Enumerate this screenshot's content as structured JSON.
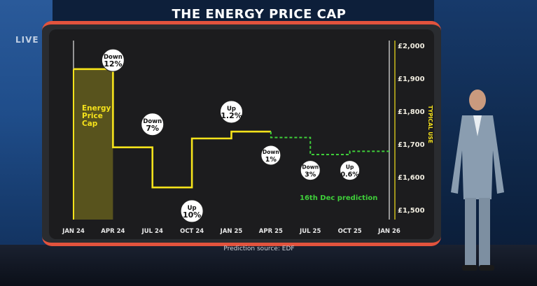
{
  "header": {
    "live_label": "LIVE",
    "title": "THE ENERGY PRICE CAP"
  },
  "footer": {
    "source": "Prediction source: EDF"
  },
  "colors": {
    "cap_line": "#f5e21b",
    "prediction_line": "#3fcf3a",
    "panel": "#1c1c1e",
    "accent": "#e2533d"
  },
  "chart_data": {
    "type": "line",
    "title": "THE ENERGY PRICE CAP",
    "ylabel": "TYPICAL USE",
    "xlabel": "",
    "x_ticks": [
      "JAN 24",
      "APR 24",
      "JUL 24",
      "OCT 24",
      "JAN 25",
      "APR 25",
      "JUL 25",
      "OCT 25",
      "JAN 26"
    ],
    "y_ticks": [
      "£1,500",
      "£1,600",
      "£1,700",
      "£1,800",
      "£1,900",
      "£2,000"
    ],
    "ylim": [
      1500,
      2000
    ],
    "grid": false,
    "series": [
      {
        "name": "Energy Price Cap",
        "style": "solid",
        "color": "#f5e21b",
        "points": [
          {
            "x": "JAN 24",
            "y": 1928
          },
          {
            "x": "APR 24",
            "y": 1690
          },
          {
            "x": "JUL 24",
            "y": 1568
          },
          {
            "x": "OCT 24",
            "y": 1717
          },
          {
            "x": "JAN 25",
            "y": 1738
          },
          {
            "x": "APR 25",
            "y": 1738
          }
        ],
        "end": "APR 25"
      },
      {
        "name": "16th Dec prediction",
        "style": "dashed",
        "color": "#3fcf3a",
        "points": [
          {
            "x": "APR 25",
            "y": 1738
          },
          {
            "x": "APR 25",
            "y": 1720
          },
          {
            "x": "JUL 25",
            "y": 1668
          },
          {
            "x": "OCT 25",
            "y": 1678
          }
        ],
        "end": "JAN 26"
      }
    ],
    "annotations": [
      {
        "line1": "Down",
        "line2": "12%",
        "x": "APR 24",
        "y": 1955,
        "size": "large"
      },
      {
        "line1": "Down",
        "line2": "7%",
        "x": "JUL 24",
        "y": 1760,
        "size": "large"
      },
      {
        "line1": "Up",
        "line2": "10%",
        "x": "OCT 24",
        "y": 1496,
        "size": "large"
      },
      {
        "line1": "Up",
        "line2": "1.2%",
        "x": "JAN 25",
        "y": 1798,
        "size": "large"
      },
      {
        "line1": "Down",
        "line2": "1%",
        "x": "APR 25",
        "y": 1666,
        "size": "small"
      },
      {
        "line1": "Down",
        "line2": "3%",
        "x": "JUL 25",
        "y": 1620,
        "size": "small"
      },
      {
        "line1": "Up",
        "line2": "0.6%",
        "x": "OCT 25",
        "y": 1620,
        "size": "small"
      }
    ],
    "series_labels": [
      {
        "text_lines": [
          "Energy",
          "Price",
          "Cap"
        ],
        "series": "Energy Price Cap"
      },
      {
        "text_lines": [
          "16th Dec prediction"
        ],
        "series": "16th Dec prediction"
      }
    ]
  }
}
